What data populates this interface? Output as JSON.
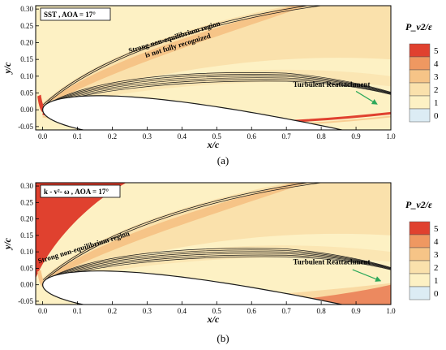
{
  "colors": {
    "level_0": "#dcecf4",
    "level_1": "#fdf1c4",
    "level_2": "#fae1ac",
    "level_3": "#f6c487",
    "level_4": "#ef9861",
    "level_5": "#e0412f",
    "contour": "#1a1a1a",
    "arrow": "#2ca85a"
  },
  "chart_data": [
    {
      "type": "heatmap",
      "panel_label": "(a)",
      "title_box": "SST , AOA = 17°",
      "xlabel": "x/c",
      "ylabel": "y/c",
      "xlim": [
        -0.02,
        1.0
      ],
      "ylim": [
        -0.06,
        0.31
      ],
      "x_ticks": [
        "0.0",
        "0.1",
        "0.2",
        "0.3",
        "0.4",
        "0.5",
        "0.6",
        "0.7",
        "0.8",
        "0.9",
        "1.0"
      ],
      "y_ticks": [
        "0.30",
        "0.25",
        "0.20",
        "0.15",
        "0.10",
        "0.05",
        "0.00",
        "-0.05"
      ],
      "legend_title": "P_v2/ε",
      "legend_levels": [
        "5",
        "4",
        "3",
        "2",
        "1",
        "0"
      ],
      "annotations": [
        {
          "text": "Strong non-equilibrium region",
          "x": 0.38,
          "y": 0.21,
          "rotate": -17
        },
        {
          "text": "is not fully recognized",
          "x": 0.39,
          "y": 0.185,
          "rotate": -17
        },
        {
          "text": "Turbulent Reattachment",
          "x": 0.83,
          "y": 0.068,
          "rotate": 0
        }
      ],
      "arrow": {
        "from": [
          0.9,
          0.055
        ],
        "to": [
          0.96,
          0.017
        ]
      }
    },
    {
      "type": "heatmap",
      "panel_label": "(b)",
      "title_box": "k - v²- ω , AOA = 17°",
      "xlabel": "x/c",
      "ylabel": "y/c",
      "xlim": [
        -0.02,
        1.0
      ],
      "ylim": [
        -0.06,
        0.31
      ],
      "x_ticks": [
        "0.0",
        "0.1",
        "0.2",
        "0.3",
        "0.4",
        "0.5",
        "0.6",
        "0.7",
        "0.8",
        "0.9",
        "1.0"
      ],
      "y_ticks": [
        "0.30",
        "0.25",
        "0.20",
        "0.15",
        "0.10",
        "0.05",
        "0.00",
        "-0.05"
      ],
      "legend_title": "P_v2/ε",
      "legend_levels": [
        "5",
        "4",
        "3",
        "2",
        "1",
        "0"
      ],
      "annotations": [
        {
          "text": "Strong non-equilibrium region",
          "x": 0.12,
          "y": 0.107,
          "rotate": -17
        },
        {
          "text": "Turbulent Reattachment",
          "x": 0.83,
          "y": 0.062,
          "rotate": 0
        }
      ],
      "arrow": {
        "from": [
          0.89,
          0.046
        ],
        "to": [
          0.97,
          0.012
        ]
      }
    }
  ]
}
